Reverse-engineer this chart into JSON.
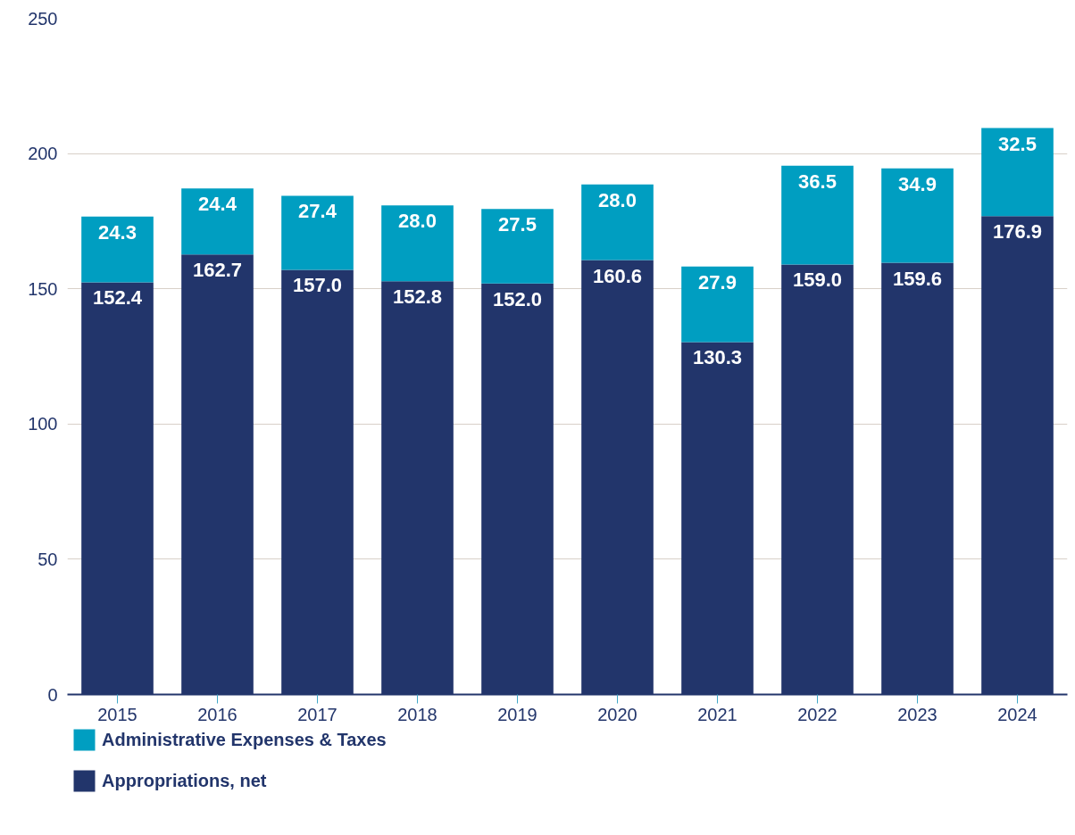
{
  "chart_data": {
    "type": "bar",
    "stacked": true,
    "grid": "y",
    "legend": "bottom left",
    "categories": [
      "2015",
      "2016",
      "2017",
      "2018",
      "2019",
      "2020",
      "2021",
      "2022",
      "2023",
      "2024"
    ],
    "series": [
      {
        "name": "Appropriations, net",
        "color": "#22356b",
        "values": [
          152.4,
          162.7,
          157.0,
          152.8,
          152.0,
          160.6,
          130.3,
          159.0,
          159.6,
          176.9
        ],
        "value_labels": [
          "152.4",
          "162.7",
          "157.0",
          "152.8",
          "152.0",
          "160.6",
          "130.3",
          "159.0",
          "159.6",
          "176.9"
        ]
      },
      {
        "name": "Administrative Expenses & Taxes",
        "color": "#009ec1",
        "values": [
          24.3,
          24.4,
          27.4,
          28.0,
          27.5,
          28.0,
          27.9,
          36.5,
          34.9,
          32.5
        ],
        "value_labels": [
          "24.3",
          "24.4",
          "27.4",
          "28.0",
          "27.5",
          "28.0",
          "27.9",
          "36.5",
          "34.9",
          "32.5"
        ]
      }
    ],
    "ylim": [
      0,
      250
    ],
    "yticks": [
      0,
      50,
      100,
      150,
      200,
      250
    ]
  }
}
